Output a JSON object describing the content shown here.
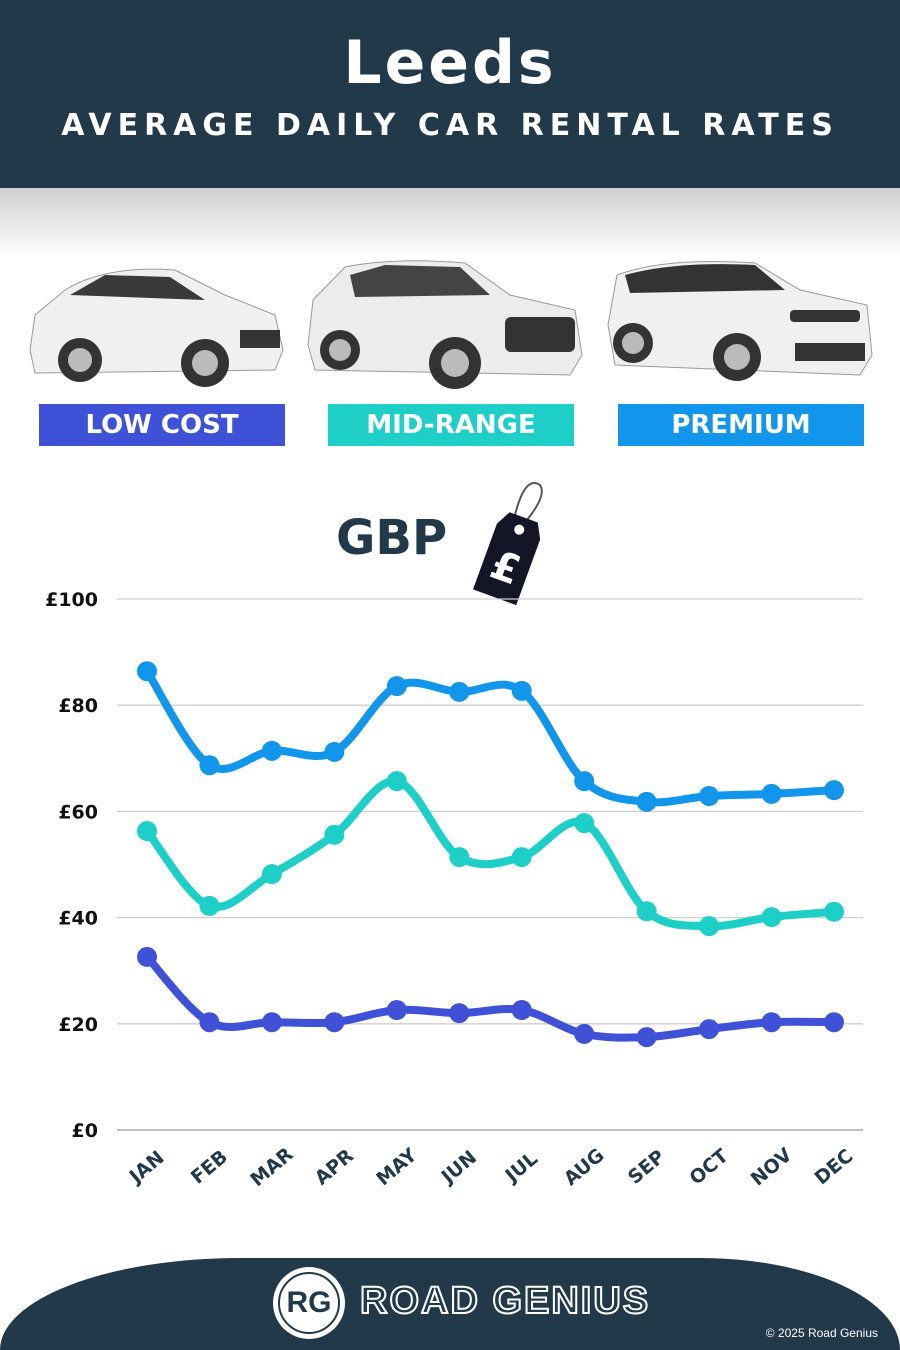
{
  "header": {
    "title": "Leeds",
    "subtitle": "AVERAGE DAILY CAR RENTAL RATES"
  },
  "categories_labels": [
    {
      "label": "LOW COST",
      "color": "#3f51d6"
    },
    {
      "label": "MID-RANGE",
      "color": "#1ecfc8"
    },
    {
      "label": "PREMIUM",
      "color": "#1296ec"
    }
  ],
  "currency": {
    "label": "GBP",
    "tag_symbol": "£"
  },
  "chart_data": {
    "type": "line",
    "categories": [
      "JAN",
      "FEB",
      "MAR",
      "APR",
      "MAY",
      "JUN",
      "JUL",
      "AUG",
      "SEP",
      "OCT",
      "NOV",
      "DEC"
    ],
    "ylim": [
      0,
      100
    ],
    "yticks": [
      0,
      20,
      40,
      60,
      80,
      100
    ],
    "ytick_labels": [
      "£0",
      "£20",
      "£40",
      "£60",
      "£80",
      "£100"
    ],
    "grid": true,
    "series": [
      {
        "name": "PREMIUM",
        "color": "#1296ec",
        "values": [
          86.4,
          68.7,
          71.4,
          71.2,
          83.6,
          82.5,
          82.7,
          65.7,
          61.8,
          62.9,
          63.3,
          64.0
        ]
      },
      {
        "name": "MID-RANGE",
        "color": "#1ecfc8",
        "values": [
          56.3,
          42.2,
          48.2,
          55.6,
          65.7,
          51.4,
          51.4,
          57.8,
          41.2,
          38.4,
          40.1,
          41.1
        ]
      },
      {
        "name": "LOW COST",
        "color": "#3f51d6",
        "values": [
          32.6,
          20.3,
          20.3,
          20.3,
          22.6,
          22.0,
          22.6,
          18.1,
          17.5,
          19.0,
          20.3,
          20.3
        ]
      }
    ]
  },
  "footer": {
    "logo": "RG",
    "brand": "ROAD GENIUS",
    "copyright": "© 2025 Road Genius"
  }
}
